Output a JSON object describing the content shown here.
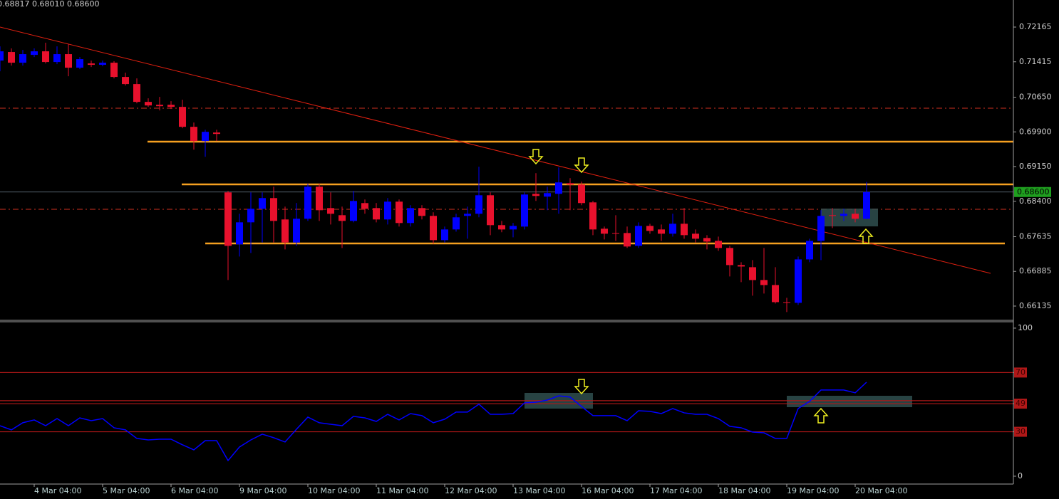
{
  "chart_data": [
    {
      "type": "candlestick",
      "header": "0.68817 0.68010 0.68600",
      "categories": [
        null,
        null,
        null,
        "4 Mar 04:00",
        null,
        null,
        null,
        null,
        null,
        "5 Mar 04:00",
        null,
        null,
        null,
        null,
        null,
        "6 Mar 04:00",
        null,
        null,
        null,
        null,
        null,
        "9 Mar 04:00",
        null,
        null,
        null,
        null,
        null,
        "10 Mar 04:00",
        null,
        null,
        null,
        null,
        null,
        "11 Mar 04:00",
        null,
        null,
        null,
        null,
        null,
        "12 Mar 04:00",
        null,
        null,
        null,
        null,
        null,
        "13 Mar 04:00",
        null,
        null,
        null,
        null,
        null,
        "16 Mar 04:00",
        null,
        null,
        null,
        null,
        null,
        "17 Mar 04:00",
        null,
        null,
        null,
        null,
        null,
        "18 Mar 04:00",
        null,
        null,
        null,
        null,
        null,
        "19 Mar 04:00",
        null,
        null,
        null,
        null,
        null,
        "20 Mar 04:00",
        null
      ],
      "open": [
        0.71441,
        0.71626,
        0.71395,
        0.71564,
        0.71641,
        0.7141,
        0.7158,
        0.71287,
        0.71379,
        0.71349,
        0.71395,
        0.71087,
        0.70933,
        0.70548,
        0.70486,
        0.70486,
        0.7044,
        0.70009,
        0.69701,
        0.69886,
        0.68592,
        0.67468,
        0.67945,
        0.68238,
        0.68469,
        0.68007,
        0.6751,
        0.68022,
        0.68715,
        0.68253,
        0.68099,
        0.67976,
        0.68361,
        0.68253,
        0.68007,
        0.68392,
        0.6793,
        0.68253,
        0.68084,
        0.6756,
        0.67791,
        0.68084,
        0.6813,
        0.6853,
        0.67884,
        0.67791,
        0.67853,
        0.68561,
        0.685,
        0.68561,
        0.68792,
        0.68761,
        0.68376,
        0.67807,
        0.67714,
        0.67714,
        0.67437,
        0.67868,
        0.67791,
        0.67699,
        0.67914,
        0.67699,
        0.67606,
        0.67545,
        0.67391,
        0.67021,
        0.66975,
        0.66698,
        0.6659,
        0.6622,
        0.66205,
        0.67144,
        0.67545,
        0.68099,
        0.68084,
        0.6813,
        0.68022
      ],
      "high": [
        0.71749,
        0.71703,
        0.71672,
        0.71703,
        0.71826,
        0.71749,
        0.71795,
        0.71518,
        0.71441,
        0.71441,
        0.71426,
        0.71179,
        0.71056,
        0.70625,
        0.70656,
        0.70563,
        0.70594,
        0.70101,
        0.69947,
        0.69947,
        0.68623,
        0.6813,
        0.68592,
        0.68592,
        0.68715,
        0.68284,
        0.68361,
        0.68777,
        0.68777,
        0.68592,
        0.68284,
        0.68623,
        0.68438,
        0.68361,
        0.68469,
        0.68438,
        0.68315,
        0.68315,
        0.68161,
        0.67853,
        0.6813,
        0.68284,
        0.69146,
        0.68592,
        0.67976,
        0.6793,
        0.68592,
        0.69008,
        0.68715,
        0.69131,
        0.689,
        0.68823,
        0.68407,
        0.67853,
        0.68099,
        0.67853,
        0.67945,
        0.67914,
        0.67899,
        0.6813,
        0.68253,
        0.67791,
        0.67668,
        0.67637,
        0.67437,
        0.67083,
        0.67129,
        0.67391,
        0.66975,
        0.66313,
        0.67206,
        0.67591,
        0.68207,
        0.68253,
        0.68238,
        0.68238,
        0.68817
      ],
      "low": [
        0.7121,
        0.71333,
        0.71333,
        0.71518,
        0.71379,
        0.71364,
        0.71102,
        0.71256,
        0.71302,
        0.71318,
        0.71056,
        0.70902,
        0.70517,
        0.7044,
        0.70363,
        0.70394,
        0.69978,
        0.69516,
        0.69362,
        0.69701,
        0.66698,
        0.67206,
        0.67283,
        0.6751,
        0.6751,
        0.6736,
        0.67437,
        0.67976,
        0.67976,
        0.67899,
        0.67391,
        0.67945,
        0.6813,
        0.67945,
        0.67899,
        0.67853,
        0.67853,
        0.68007,
        0.67483,
        0.6751,
        0.67745,
        0.67591,
        0.68053,
        0.67668,
        0.6773,
        0.67622,
        0.67791,
        0.68407,
        0.68207,
        0.6813,
        0.68207,
        0.68315,
        0.67668,
        0.67576,
        0.67545,
        0.67391,
        0.67391,
        0.67699,
        0.67545,
        0.67637,
        0.67591,
        0.6751,
        0.6736,
        0.67329,
        0.66775,
        0.66652,
        0.66359,
        0.66405,
        0.6619,
        0.66005,
        0.66159,
        0.67083,
        0.67129,
        0.67822,
        0.67976,
        0.67945,
        0.6801
      ],
      "close": [
        0.71641,
        0.71395,
        0.7158,
        0.71641,
        0.7141,
        0.7158,
        0.71287,
        0.71472,
        0.71349,
        0.71395,
        0.71087,
        0.70933,
        0.70548,
        0.70471,
        0.70455,
        0.7044,
        0.70009,
        0.69701,
        0.69901,
        0.69855,
        0.67437,
        0.67945,
        0.68238,
        0.68469,
        0.67976,
        0.6751,
        0.68022,
        0.68715,
        0.68207,
        0.6813,
        0.67976,
        0.68407,
        0.68238,
        0.68007,
        0.68392,
        0.6793,
        0.68253,
        0.68084,
        0.6756,
        0.67791,
        0.68053,
        0.6813,
        0.6853,
        0.67884,
        0.67791,
        0.67868,
        0.68546,
        0.68515,
        0.68577,
        0.68808,
        0.68761,
        0.68361,
        0.67791,
        0.67699,
        0.67699,
        0.67422,
        0.67868,
        0.6776,
        0.67699,
        0.67914,
        0.67668,
        0.67591,
        0.67529,
        0.67391,
        0.67021,
        0.6699,
        0.66698,
        0.6659,
        0.6622,
        0.66205,
        0.67144,
        0.67545,
        0.68084,
        0.68084,
        0.6813,
        0.68022,
        0.686
      ],
      "up_color": "#0000ff",
      "down_color": "#e8112d",
      "ylim": [
        0.65827,
        0.7275
      ],
      "yticks": [
        {
          "value": 0.72165,
          "label": "0.72165"
        },
        {
          "value": 0.71415,
          "label": "0.71415"
        },
        {
          "value": 0.7065,
          "label": "0.70650"
        },
        {
          "value": 0.699,
          "label": "0.69900"
        },
        {
          "value": 0.6915,
          "label": "0.69150"
        },
        {
          "value": 0.684,
          "label": "0.68400"
        },
        {
          "value": 0.67635,
          "label": "0.67635"
        },
        {
          "value": 0.66885,
          "label": "0.66885"
        },
        {
          "value": 0.66135,
          "label": "0.66135"
        }
      ],
      "current_price": {
        "value": 0.686,
        "label": "0.68600"
      }
    },
    {
      "type": "line",
      "values": [
        34.1,
        31.3,
        36.1,
        38.0,
        34.1,
        38.9,
        34.1,
        39.4,
        37.5,
        38.9,
        32.7,
        31.3,
        25.5,
        24.5,
        25.0,
        25.0,
        21.2,
        17.8,
        24.0,
        24.0,
        10.6,
        19.7,
        24.5,
        28.4,
        26.0,
        23.1,
        31.7,
        39.9,
        36.1,
        35.1,
        34.1,
        40.4,
        39.4,
        37.0,
        41.8,
        38.0,
        42.3,
        40.9,
        36.1,
        38.5,
        43.3,
        43.3,
        48.6,
        41.8,
        41.8,
        42.3,
        49.5,
        50.0,
        51.4,
        54.3,
        53.4,
        47.1,
        40.9,
        40.9,
        40.9,
        37.5,
        44.2,
        43.8,
        42.3,
        45.7,
        42.8,
        41.8,
        41.8,
        38.9,
        33.7,
        32.7,
        29.8,
        29.3,
        25.5,
        25.5,
        45.7,
        50.5,
        58.2,
        58.2,
        58.2,
        56.3,
        63.5
      ],
      "color": "#0000ff",
      "ylim": [
        -5.3,
        104.3
      ],
      "yticks": [
        100,
        70,
        49,
        30,
        0
      ],
      "levels": [
        70,
        51,
        49,
        30
      ],
      "level_color": "#b01818"
    }
  ]
}
